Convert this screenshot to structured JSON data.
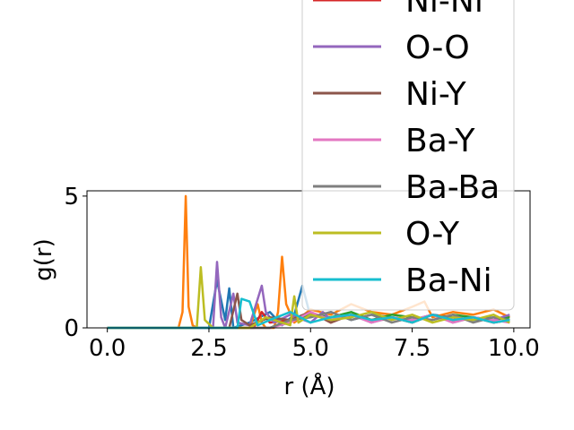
{
  "chart_data": {
    "type": "line",
    "xlabel": "r (Å)",
    "ylabel": "g(r)",
    "xlim": [
      -0.5,
      10.4
    ],
    "ylim": [
      0,
      5.2
    ],
    "xticks": [
      0.0,
      2.5,
      5.0,
      7.5,
      10.0
    ],
    "xtick_labels": [
      "0.0",
      "2.5",
      "5.0",
      "7.5",
      "10.0"
    ],
    "yticks": [
      0,
      5
    ],
    "ytick_labels": [
      "0",
      "5"
    ],
    "grid": false,
    "legend_position": "upper-right",
    "legend_entries": [
      "Ni-Ni",
      "O-O",
      "Ni-Y",
      "Ba-Y",
      "Ba-Ba",
      "O-Y",
      "Ba-Ni"
    ],
    "series": [
      {
        "name": "",
        "color": "#1f77b4",
        "x": [
          0.0,
          1.8,
          2.5,
          2.7,
          2.9,
          3.0,
          3.1,
          3.5,
          4.0,
          4.3,
          4.6,
          4.8,
          5.0,
          5.5,
          6.0,
          6.5,
          7.0,
          7.5,
          8.0,
          8.5,
          9.0,
          9.5,
          9.9
        ],
        "y": [
          0.0,
          0.0,
          0.0,
          1.8,
          0.3,
          1.5,
          0.0,
          0.2,
          0.6,
          0.1,
          0.5,
          1.6,
          0.4,
          0.6,
          0.3,
          0.5,
          0.4,
          0.3,
          0.5,
          0.4,
          0.3,
          0.4,
          0.3
        ]
      },
      {
        "name": "",
        "color": "#ff7f0e",
        "x": [
          0.0,
          1.75,
          1.85,
          1.93,
          2.0,
          2.1,
          2.2,
          3.5,
          3.7,
          3.8,
          3.9,
          4.1,
          4.2,
          4.3,
          4.4,
          4.6,
          5.0,
          5.5,
          6.0,
          6.5,
          7.0,
          7.5,
          7.8,
          8.0,
          8.5,
          9.0,
          9.5,
          9.9
        ],
        "y": [
          0.0,
          0.0,
          0.6,
          5.0,
          0.8,
          0.1,
          0.0,
          0.0,
          0.9,
          0.2,
          0.0,
          0.0,
          0.6,
          2.7,
          0.9,
          0.2,
          0.7,
          0.5,
          0.9,
          0.6,
          0.5,
          0.8,
          1.0,
          0.4,
          0.6,
          0.5,
          0.7,
          0.4
        ]
      },
      {
        "name": "",
        "color": "#2ca02c",
        "x": [
          0.0,
          4.0,
          4.5,
          5.0,
          5.5,
          6.0,
          6.5,
          7.0,
          7.5,
          8.0,
          8.5,
          9.0,
          9.5,
          9.9
        ],
        "y": [
          0.0,
          0.0,
          0.3,
          0.5,
          0.4,
          0.6,
          0.3,
          0.5,
          0.4,
          0.3,
          0.5,
          0.4,
          0.3,
          0.4
        ]
      },
      {
        "name": "Ni-Ni",
        "color": "#d62728",
        "x": [
          0.0,
          3.6,
          3.8,
          4.0,
          4.5,
          5.0,
          5.5,
          6.0,
          6.5,
          7.0,
          7.5,
          8.0,
          8.5,
          9.0,
          9.5,
          9.9
        ],
        "y": [
          0.0,
          0.0,
          0.6,
          0.2,
          0.3,
          0.6,
          0.2,
          0.5,
          0.3,
          0.4,
          0.2,
          0.5,
          0.3,
          0.4,
          0.2,
          0.3
        ]
      },
      {
        "name": "O-O",
        "color": "#9467bd",
        "x": [
          0.0,
          2.6,
          2.7,
          2.8,
          2.9,
          3.1,
          3.2,
          3.5,
          3.8,
          3.9,
          4.1,
          4.5,
          5.0,
          5.3,
          5.5,
          6.0,
          6.5,
          7.0,
          7.5,
          8.0,
          8.5,
          9.0,
          9.5,
          9.9
        ],
        "y": [
          0.0,
          0.0,
          2.5,
          0.4,
          0.0,
          1.3,
          0.2,
          0.1,
          1.6,
          0.6,
          0.2,
          0.5,
          0.2,
          0.6,
          0.3,
          0.5,
          0.2,
          0.4,
          0.3,
          0.5,
          0.2,
          0.4,
          0.3,
          0.5
        ]
      },
      {
        "name": "Ni-Y",
        "color": "#8c564b",
        "x": [
          0.0,
          3.0,
          3.2,
          3.3,
          3.5,
          4.0,
          4.5,
          5.0,
          5.5,
          6.0,
          6.5,
          7.0,
          7.5,
          8.0,
          8.5,
          9.0,
          9.5,
          9.9
        ],
        "y": [
          0.0,
          0.0,
          1.3,
          0.3,
          0.1,
          0.4,
          0.3,
          0.6,
          0.2,
          0.5,
          0.3,
          0.4,
          0.2,
          0.5,
          0.3,
          0.4,
          0.2,
          0.3
        ]
      },
      {
        "name": "Ba-Y",
        "color": "#e377c2",
        "x": [
          0.0,
          4.0,
          4.5,
          5.0,
          5.5,
          6.0,
          6.5,
          7.0,
          7.5,
          8.0,
          8.5,
          9.0,
          9.5,
          9.9
        ],
        "y": [
          0.0,
          0.0,
          0.2,
          0.6,
          0.3,
          0.5,
          0.2,
          0.4,
          0.3,
          0.5,
          0.2,
          0.4,
          0.3,
          0.2
        ]
      },
      {
        "name": "Ba-Ba",
        "color": "#7f7f7f",
        "x": [
          0.0,
          4.0,
          4.5,
          5.0,
          5.5,
          6.0,
          6.5,
          7.0,
          7.5,
          8.0,
          8.5,
          9.0,
          9.5,
          9.9
        ],
        "y": [
          0.0,
          0.0,
          0.3,
          0.4,
          0.6,
          0.3,
          0.5,
          0.2,
          0.4,
          0.3,
          0.5,
          0.2,
          0.4,
          0.3
        ]
      },
      {
        "name": "O-Y",
        "color": "#bcbd22",
        "x": [
          0.0,
          2.2,
          2.3,
          2.4,
          2.6,
          3.5,
          3.9,
          4.5,
          4.6,
          4.7,
          5.0,
          5.5,
          6.0,
          6.5,
          7.0,
          7.5,
          8.0,
          8.5,
          9.0,
          9.5,
          9.9
        ],
        "y": [
          0.0,
          0.0,
          2.3,
          0.3,
          0.0,
          0.0,
          0.4,
          0.1,
          1.2,
          0.2,
          0.5,
          0.3,
          0.4,
          0.6,
          0.3,
          0.5,
          0.2,
          0.4,
          0.3,
          0.5,
          0.2
        ]
      },
      {
        "name": "Ba-Ni",
        "color": "#17becf",
        "x": [
          0.0,
          3.2,
          3.3,
          3.5,
          3.7,
          4.0,
          4.5,
          5.0,
          5.5,
          6.0,
          6.5,
          7.0,
          7.5,
          8.0,
          8.5,
          9.0,
          9.5,
          9.9
        ],
        "y": [
          0.0,
          0.0,
          1.1,
          1.0,
          0.1,
          0.3,
          0.6,
          0.2,
          0.4,
          0.5,
          0.3,
          0.4,
          0.2,
          0.5,
          0.3,
          0.4,
          0.2,
          0.3
        ]
      }
    ]
  }
}
